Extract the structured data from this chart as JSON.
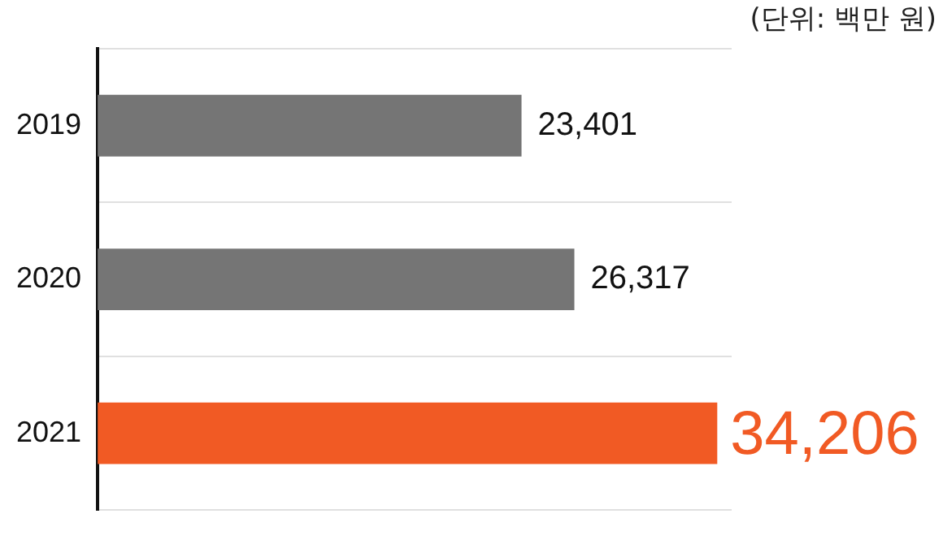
{
  "chart_data": {
    "type": "bar",
    "orientation": "horizontal",
    "categories": [
      "2019",
      "2020",
      "2021"
    ],
    "values": [
      23401,
      26317,
      34206
    ],
    "colors": [
      "#757575",
      "#757575",
      "#f15a24"
    ],
    "value_labels": [
      "23,401",
      "26,317",
      "34,206"
    ],
    "grid": "y",
    "legend": false,
    "annotations": [
      "(단위: 백만 원)"
    ]
  }
}
